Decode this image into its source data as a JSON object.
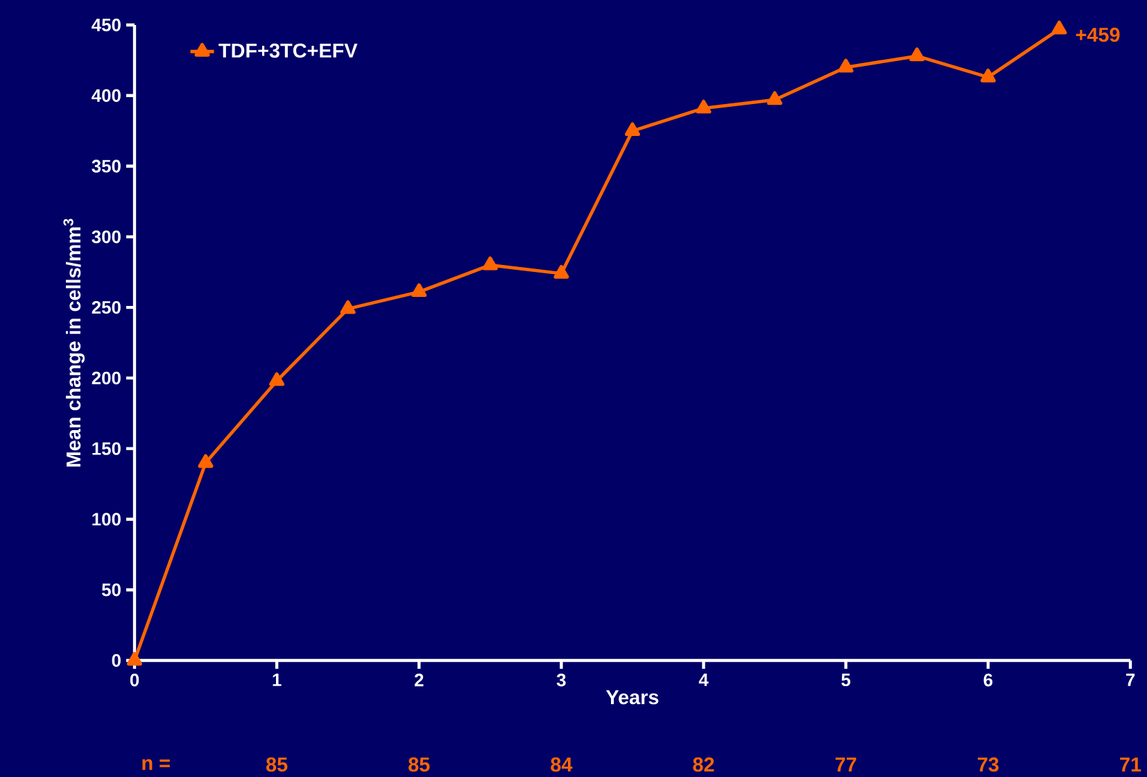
{
  "chart_data": {
    "type": "line",
    "xlabel": "Years",
    "ylabel": "Mean change in cells/mm$^{3}$",
    "x": [
      0,
      0.5,
      1,
      1.5,
      2,
      2.5,
      3,
      3.5,
      4,
      4.5,
      5,
      5.5,
      6,
      6.5
    ],
    "series": [
      {
        "name": "TDF+3TC+EFV",
        "color": "#ff6600",
        "values": [
          0,
          140,
          198,
          249,
          261,
          280,
          274,
          375,
          391,
          397,
          420,
          428,
          413,
          447
        ]
      }
    ],
    "xlim": [
      0,
      7
    ],
    "ylim": [
      0,
      450
    ],
    "xticks": [
      0,
      1,
      2,
      3,
      4,
      5,
      6,
      7
    ],
    "yticks": [
      0,
      50,
      100,
      150,
      200,
      250,
      300,
      350,
      400,
      450
    ],
    "marker": "triangle",
    "line_style": "solid",
    "grid": false,
    "legend": "top left",
    "annotations": [
      {
        "text": "+459",
        "x": 6.5,
        "y": 447
      },
      "n =",
      "85",
      "85",
      "84",
      "82",
      "77",
      "73",
      "71"
    ]
  }
}
